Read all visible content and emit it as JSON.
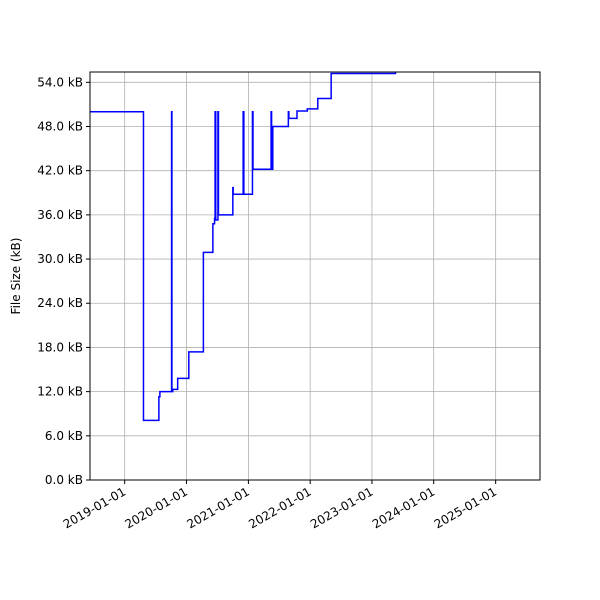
{
  "chart_data": {
    "type": "line",
    "title": "",
    "xlabel": "",
    "ylabel": "File Size (kB)",
    "grid": true,
    "legend": "none",
    "line_color": "#0000ff",
    "grid_color": "#b0b0b0",
    "xlim": [
      "2018-06-10",
      "2025-09-20"
    ],
    "ylim": [
      0,
      55.4
    ],
    "x_ticks": [
      "2019-01-01",
      "2020-01-01",
      "2021-01-01",
      "2022-01-01",
      "2023-01-01",
      "2024-01-01",
      "2025-01-01"
    ],
    "y_ticks": [
      0,
      6,
      12,
      18,
      24,
      30,
      36,
      42,
      48,
      54
    ],
    "y_tick_labels": [
      "0.0 kB",
      "6.0 kB",
      "12.0 kB",
      "18.0 kB",
      "24.0 kB",
      "30.0 kB",
      "36.0 kB",
      "42.0 kB",
      "48.0 kB",
      "54.0 kB"
    ],
    "series": [
      {
        "step": true,
        "points": [
          [
            "2018-06-10",
            50.0
          ],
          [
            "2019-04-10",
            50.0
          ],
          [
            "2019-04-22",
            8.1
          ],
          [
            "2019-07-15",
            8.1
          ],
          [
            "2019-07-22",
            11.3
          ],
          [
            "2019-07-28",
            12.0
          ],
          [
            "2019-10-03",
            12.0
          ],
          [
            "2019-10-05",
            50.0
          ],
          [
            "2019-10-07",
            12.0
          ],
          [
            "2019-10-12",
            12.3
          ],
          [
            "2019-11-10",
            13.8
          ],
          [
            "2020-01-15",
            17.4
          ],
          [
            "2020-04-10",
            30.9
          ],
          [
            "2020-06-05",
            34.8
          ],
          [
            "2020-06-15",
            35.5
          ],
          [
            "2020-06-18",
            50.0
          ],
          [
            "2020-06-22",
            35.3
          ],
          [
            "2020-07-05",
            50.0
          ],
          [
            "2020-07-08",
            36.0
          ],
          [
            "2020-10-01",
            39.7
          ],
          [
            "2020-10-03",
            38.8
          ],
          [
            "2020-12-01",
            50.0
          ],
          [
            "2020-12-05",
            38.8
          ],
          [
            "2021-01-25",
            50.0
          ],
          [
            "2021-01-28",
            42.2
          ],
          [
            "2021-05-15",
            50.0
          ],
          [
            "2021-05-18",
            42.2
          ],
          [
            "2021-05-25",
            48.0
          ],
          [
            "2021-08-25",
            50.0
          ],
          [
            "2021-08-28",
            49.1
          ],
          [
            "2021-10-15",
            50.1
          ],
          [
            "2021-12-15",
            50.4
          ],
          [
            "2022-02-15",
            51.8
          ],
          [
            "2022-05-05",
            55.2
          ],
          [
            "2023-05-20",
            55.4
          ]
        ]
      }
    ]
  }
}
